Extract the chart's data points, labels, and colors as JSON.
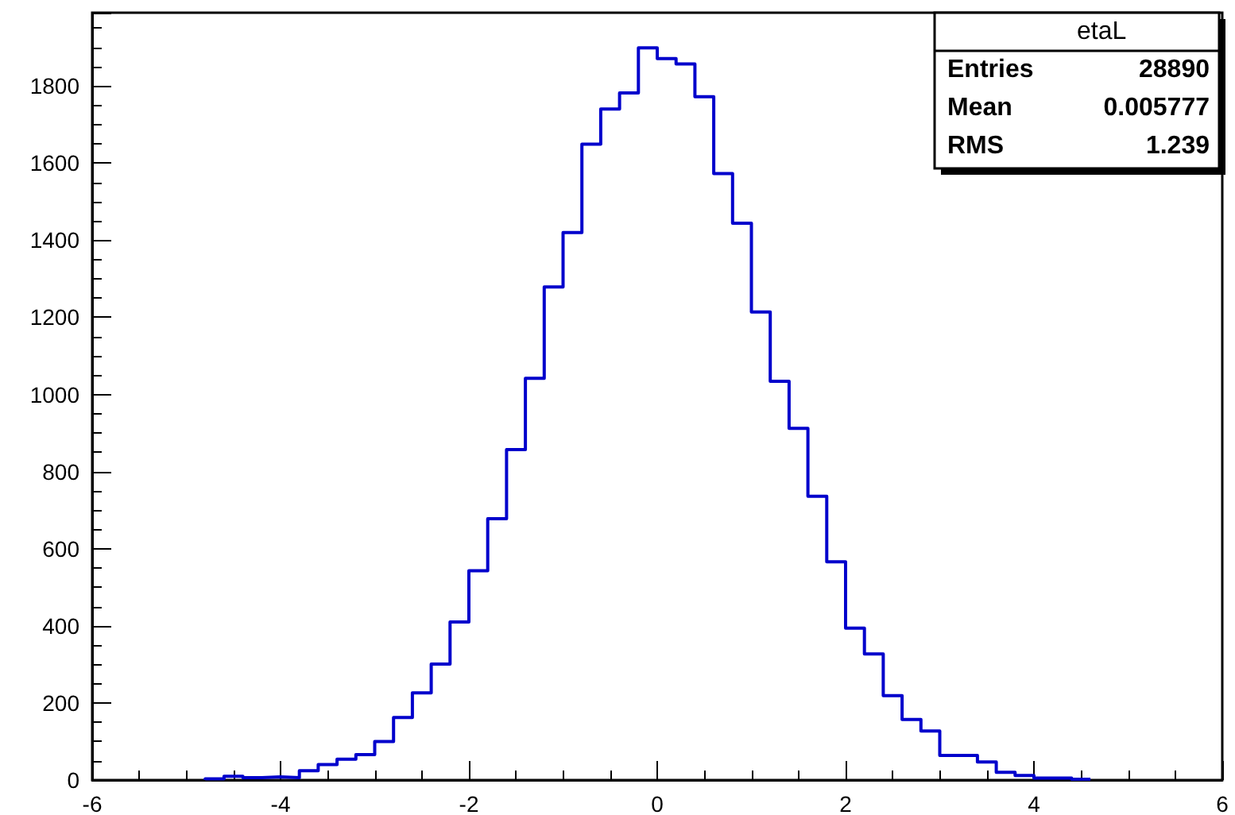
{
  "chart_data": {
    "type": "histogram",
    "title": "etaL",
    "annotations": [
      "Entries 28890",
      "Mean 0.005777",
      "RMS 1.239"
    ],
    "bins": [
      -4.8,
      -4.6,
      -4.4,
      -4.2,
      -4.0,
      -3.8,
      -3.6,
      -3.4,
      -3.2,
      -3.0,
      -2.8,
      -2.6,
      -2.4,
      -2.2,
      -2.0,
      -1.8,
      -1.6,
      -1.4,
      -1.2,
      -1.0,
      -0.8,
      -0.6,
      -0.4,
      -0.2,
      0.0,
      0.2,
      0.4,
      0.6,
      0.8,
      1.0,
      1.2,
      1.4,
      1.6,
      1.8,
      2.0,
      2.2,
      2.4,
      2.6,
      2.8,
      3.0,
      3.2,
      3.4,
      3.6,
      3.8,
      4.0,
      4.2,
      4.4,
      4.6
    ],
    "values": [
      3,
      10,
      6,
      8,
      6,
      24,
      40,
      54,
      66,
      100,
      162,
      226,
      301,
      410,
      543,
      678,
      857,
      1042,
      1279,
      1420,
      1649,
      1740,
      1782,
      1899,
      1871,
      1857,
      1772,
      1573,
      1444,
      1214,
      1034,
      912,
      736,
      566,
      394,
      327,
      219,
      157,
      127,
      64,
      64,
      47,
      20,
      12,
      5,
      5,
      2
    ],
    "color": "#0000cc",
    "xlim": [
      -6,
      6
    ],
    "xticks": [
      -6,
      -4,
      -2,
      0,
      2,
      4,
      6
    ],
    "ylim": [
      0,
      1990
    ],
    "yticks": [
      0,
      200,
      400,
      600,
      800,
      1000,
      1200,
      1400,
      1600,
      1800
    ],
    "grid": false
  }
}
